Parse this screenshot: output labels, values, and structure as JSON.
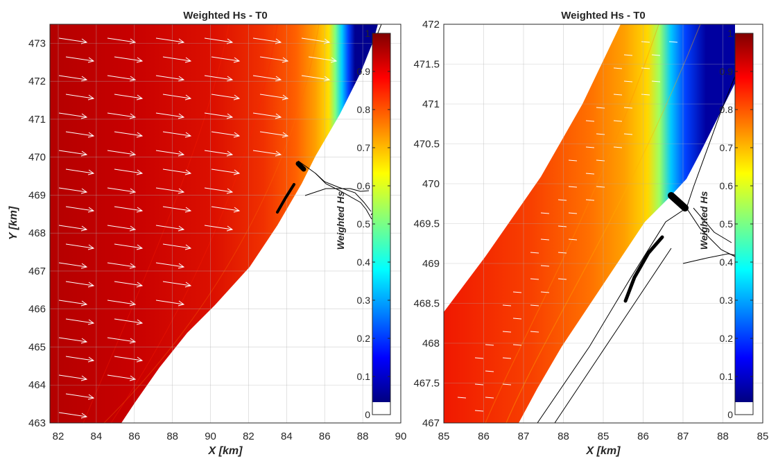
{
  "chart_data": [
    {
      "type": "heatmap",
      "title": "Weighted Hs - T0",
      "xlabel": "X [km]",
      "ylabel": "Y [km]",
      "xticks": [
        "82",
        "84",
        "86",
        "88",
        "90",
        "82",
        "84",
        "86",
        "88",
        "90"
      ],
      "yticks": [
        "463",
        "464",
        "465",
        "466",
        "467",
        "468",
        "469",
        "470",
        "471",
        "472",
        "473"
      ],
      "ylim": [
        463,
        473.5
      ],
      "grid": true,
      "colorbar": {
        "label": "Weighted Hs",
        "range": [
          0,
          1
        ],
        "ticks": [
          "0",
          "0.1",
          "0.2",
          "0.3",
          "0.4",
          "0.5",
          "0.6",
          "0.7",
          "0.8",
          "0.9",
          "1"
        ]
      },
      "field": {
        "offshore_value": 1.0,
        "nearshore_value": 0.0,
        "shoreline_x": [
          85.5,
          84.9,
          87.0,
          88.7
        ],
        "shoreline_y": [
          463,
          466,
          470,
          473.5
        ]
      },
      "vectors": "arrows pointing onshore (east-southeast)"
    },
    {
      "type": "heatmap",
      "title": "Weighted Hs - T0",
      "xlabel": "X [km]",
      "ylabel": "",
      "xticks": [
        "85",
        "86",
        "87",
        "88",
        "85",
        "86",
        "87",
        "88",
        "85"
      ],
      "yticks": [
        "467",
        "467.5",
        "468",
        "468.5",
        "469",
        "469.5",
        "470",
        "470.5",
        "471",
        "471.5",
        "472"
      ],
      "ylim": [
        467,
        472
      ],
      "grid": true,
      "colorbar": {
        "label": "Weighted Hs",
        "range": [
          0,
          1
        ],
        "ticks": [
          "0",
          "0.1",
          "0.2",
          "0.3",
          "0.4",
          "0.5",
          "0.6",
          "0.7",
          "0.8",
          "0.9",
          "1"
        ]
      },
      "field": {
        "offshore_value": 0.95,
        "nearshore_value": 0.0,
        "shoreline_note": "wave field bounded by a diagonal offshore edge and a diagonal shoreline"
      },
      "vectors": "short arrows pointing onshore (east)"
    }
  ]
}
